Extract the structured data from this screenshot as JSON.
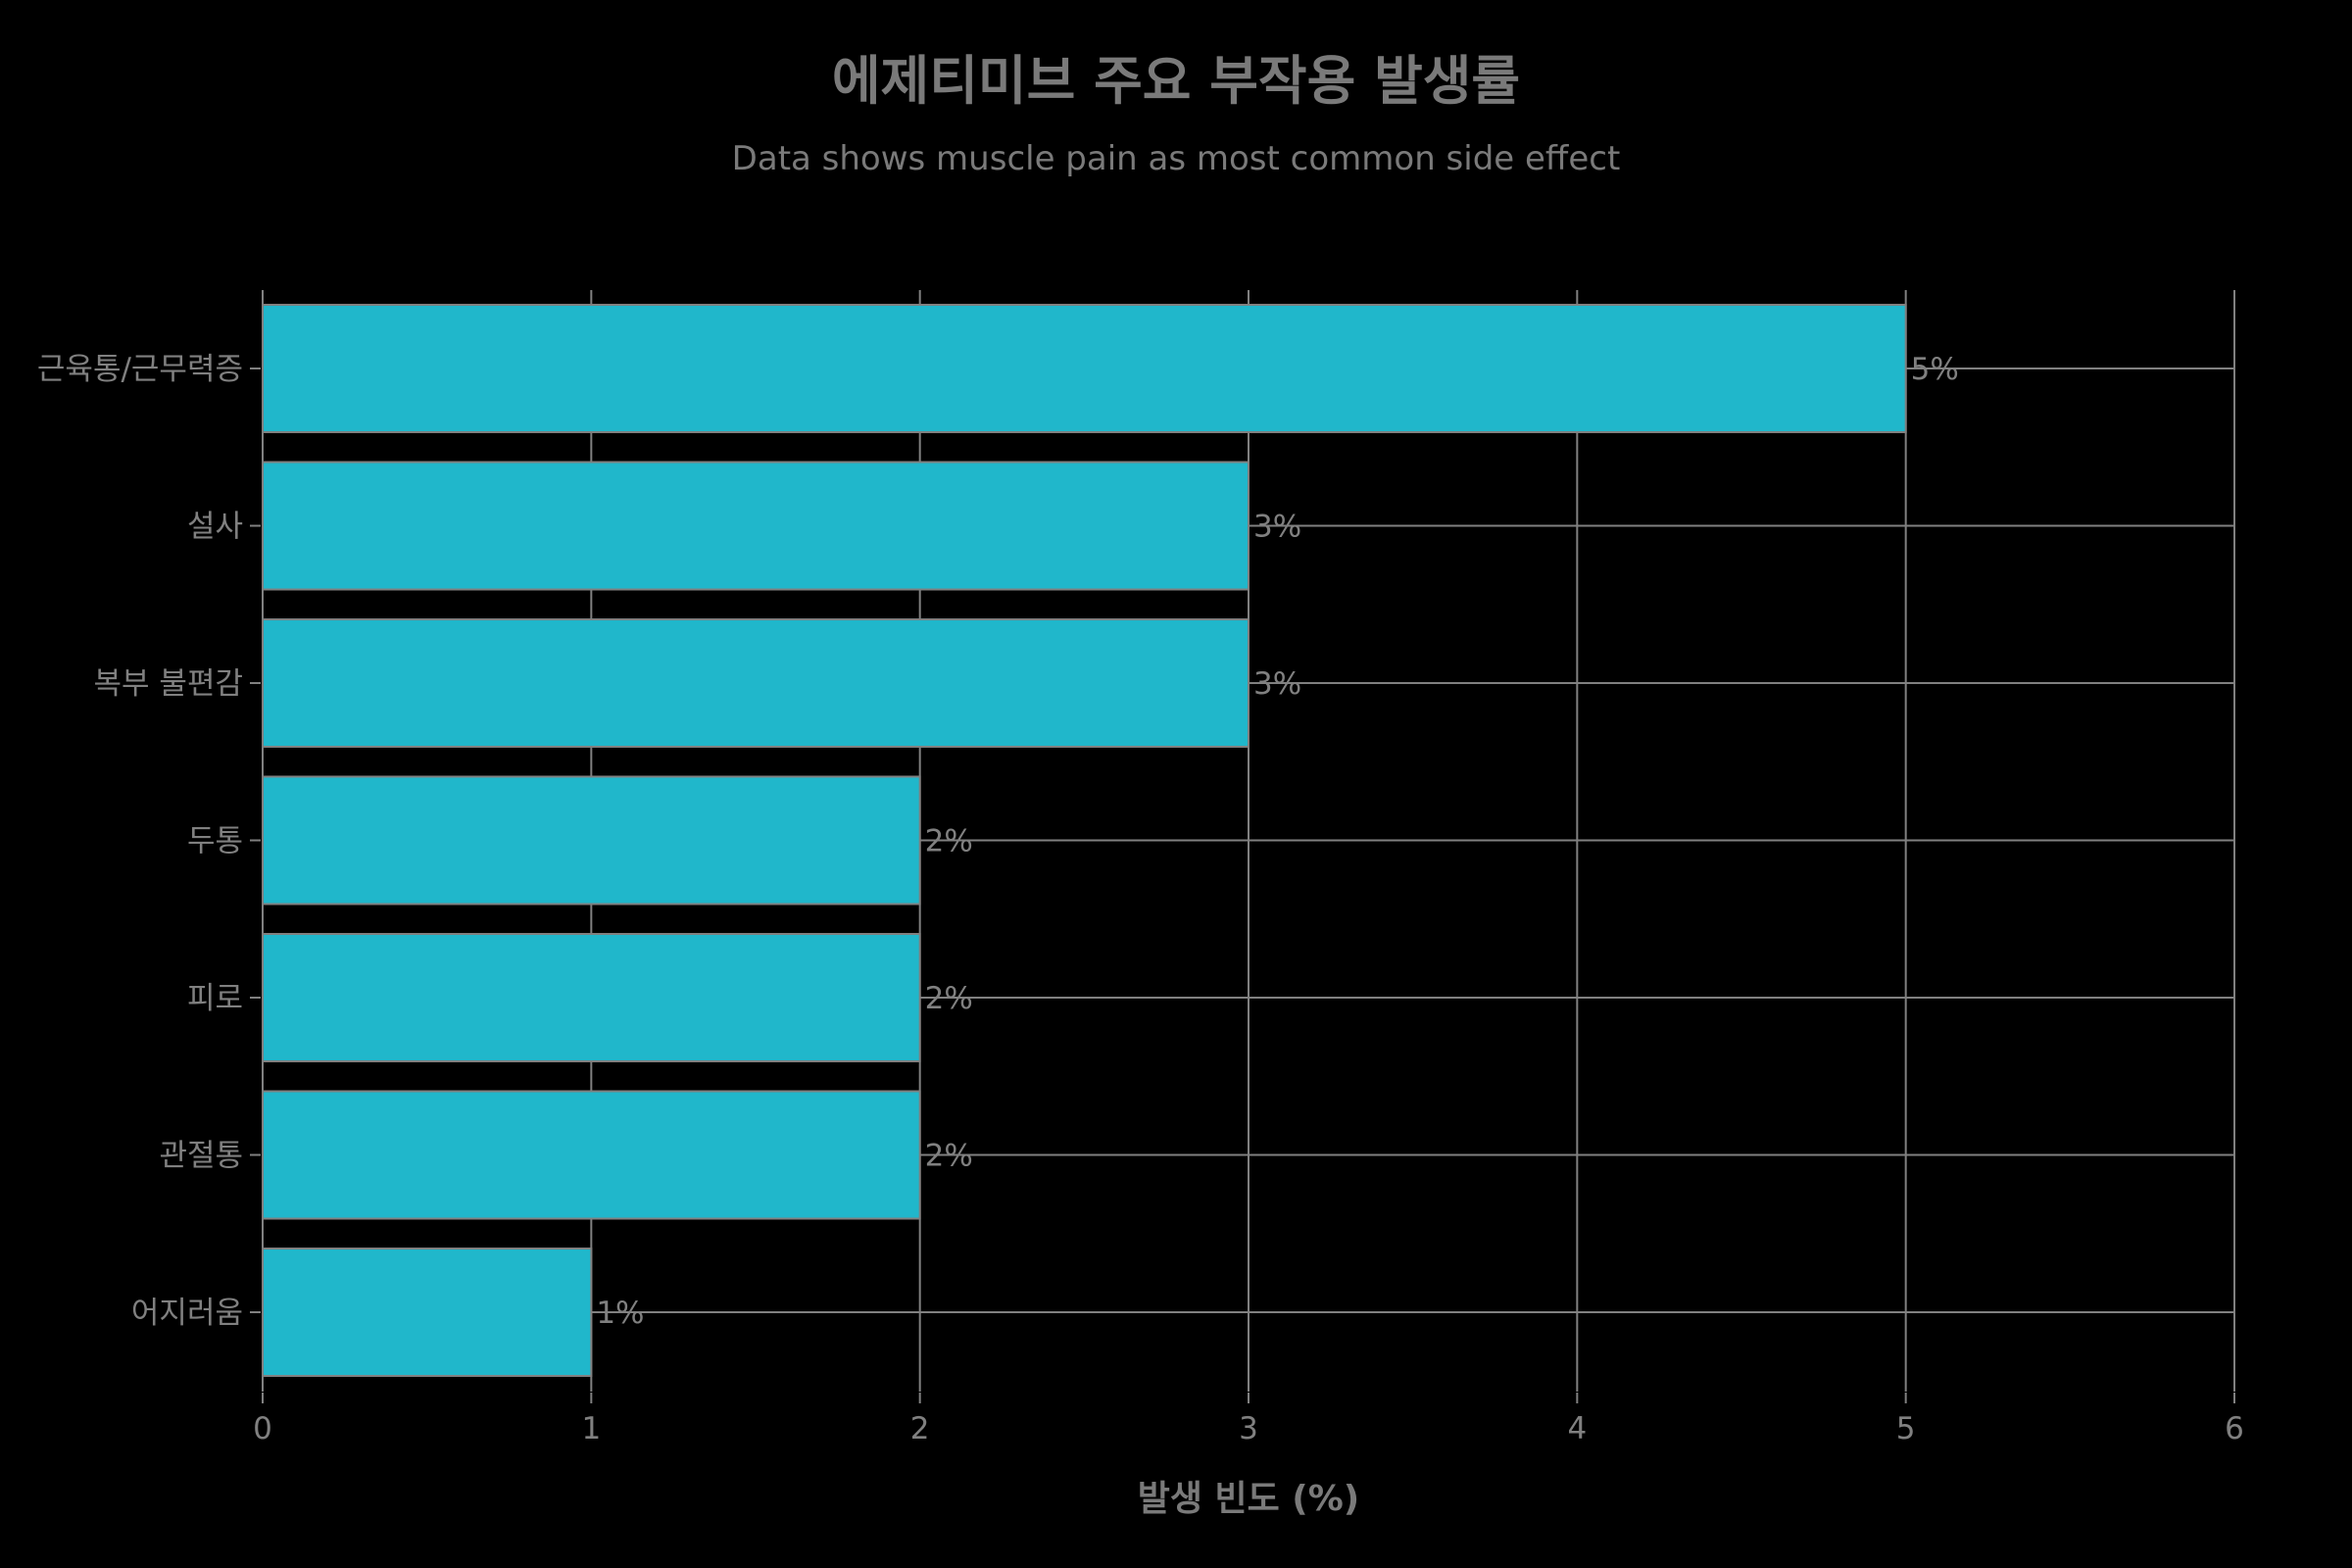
{
  "title": "에제티미브 주요 부작용 발생률",
  "subtitle": "Data shows muscle pain as most common side effect",
  "colors": {
    "background": "#000000",
    "bar": "#20b7cb",
    "bar_outline": "#808080",
    "grid": "#808080",
    "text": "#7f7f7f"
  },
  "chart_data": {
    "type": "bar",
    "orientation": "horizontal",
    "title": "에제티미브 주요 부작용 발생률",
    "subtitle": "Data shows muscle pain as most common side effect",
    "xlabel": "발생 빈도 (%)",
    "ylabel": "",
    "categories": [
      "근육통/근무력증",
      "설사",
      "복부 불편감",
      "두통",
      "피로",
      "관절통",
      "어지러움"
    ],
    "values": [
      5,
      3,
      3,
      2,
      2,
      2,
      1
    ],
    "value_labels": [
      "5%",
      "3%",
      "3%",
      "2%",
      "2%",
      "2%",
      "1%"
    ],
    "xlim": [
      0,
      6
    ],
    "xticks": [
      "0",
      "1",
      "2",
      "3",
      "4",
      "5",
      "6"
    ],
    "grid": true,
    "legend": null
  }
}
